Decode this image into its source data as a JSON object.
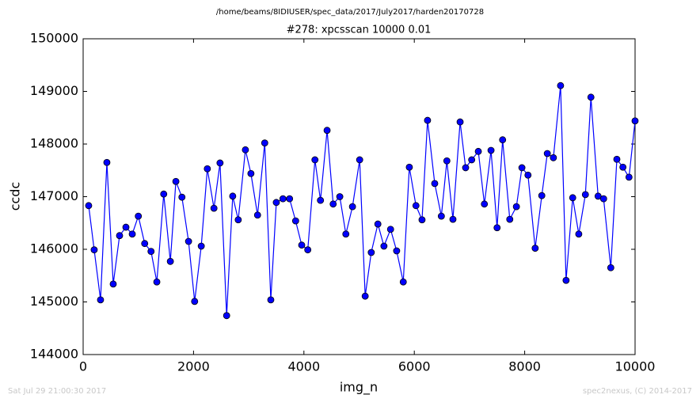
{
  "chart_data": {
    "type": "line",
    "suptitle": "/home/beams/8IDIUSER/spec_data/2017/July2017/harden20170728",
    "title": "#278: xpcsscan 10000 0.01",
    "xlabel": "img_n",
    "ylabel": "ccdc",
    "footer_left": "Sat Jul 29 21:00:30 2017",
    "footer_right": "spec2nexus, (C) 2014-2017",
    "color": "#0000ff",
    "marker": "circle",
    "grid": false,
    "xlim": [
      0,
      10000
    ],
    "xticks": [
      0,
      2000,
      4000,
      6000,
      8000,
      10000
    ],
    "ylim": [
      144000,
      150000
    ],
    "yticks": [
      144000,
      145000,
      146000,
      147000,
      148000,
      149000,
      150000
    ],
    "x": [
      100,
      200,
      315,
      430,
      545,
      660,
      775,
      890,
      1000,
      1115,
      1230,
      1335,
      1460,
      1580,
      1680,
      1790,
      1910,
      2020,
      2140,
      2250,
      2370,
      2480,
      2600,
      2710,
      2810,
      2940,
      3040,
      3160,
      3290,
      3400,
      3500,
      3620,
      3740,
      3850,
      3960,
      4070,
      4200,
      4300,
      4420,
      4530,
      4650,
      4760,
      4880,
      5010,
      5110,
      5220,
      5340,
      5450,
      5570,
      5680,
      5800,
      5910,
      6030,
      6140,
      6240,
      6370,
      6490,
      6590,
      6700,
      6830,
      6930,
      7040,
      7160,
      7270,
      7390,
      7500,
      7600,
      7730,
      7850,
      7950,
      8060,
      8190,
      8310,
      8410,
      8520,
      8650,
      8750,
      8870,
      8980,
      9100,
      9200,
      9330,
      9430,
      9560,
      9670,
      9780,
      9890,
      10000
    ],
    "values": [
      146830,
      145990,
      145040,
      147650,
      145340,
      146260,
      146420,
      146290,
      146630,
      146110,
      145960,
      145380,
      147050,
      145770,
      147290,
      146990,
      146150,
      145010,
      146060,
      147530,
      146780,
      147640,
      144740,
      147010,
      146560,
      147890,
      147440,
      146650,
      148020,
      145040,
      146890,
      146960,
      146960,
      146540,
      146080,
      145990,
      147700,
      146930,
      148260,
      146860,
      147000,
      146290,
      146810,
      147700,
      145110,
      145940,
      146480,
      146060,
      146380,
      145970,
      145380,
      147560,
      146830,
      146560,
      148450,
      147250,
      146630,
      147680,
      146570,
      148420,
      147550,
      147700,
      147860,
      146860,
      147880,
      146410,
      148080,
      146570,
      146810,
      147550,
      147410,
      146020,
      147020,
      147820,
      147740,
      149110,
      145410,
      146980,
      146290,
      147040,
      148890,
      147010,
      146960,
      145650,
      147710,
      147560,
      147370,
      148440
    ]
  }
}
